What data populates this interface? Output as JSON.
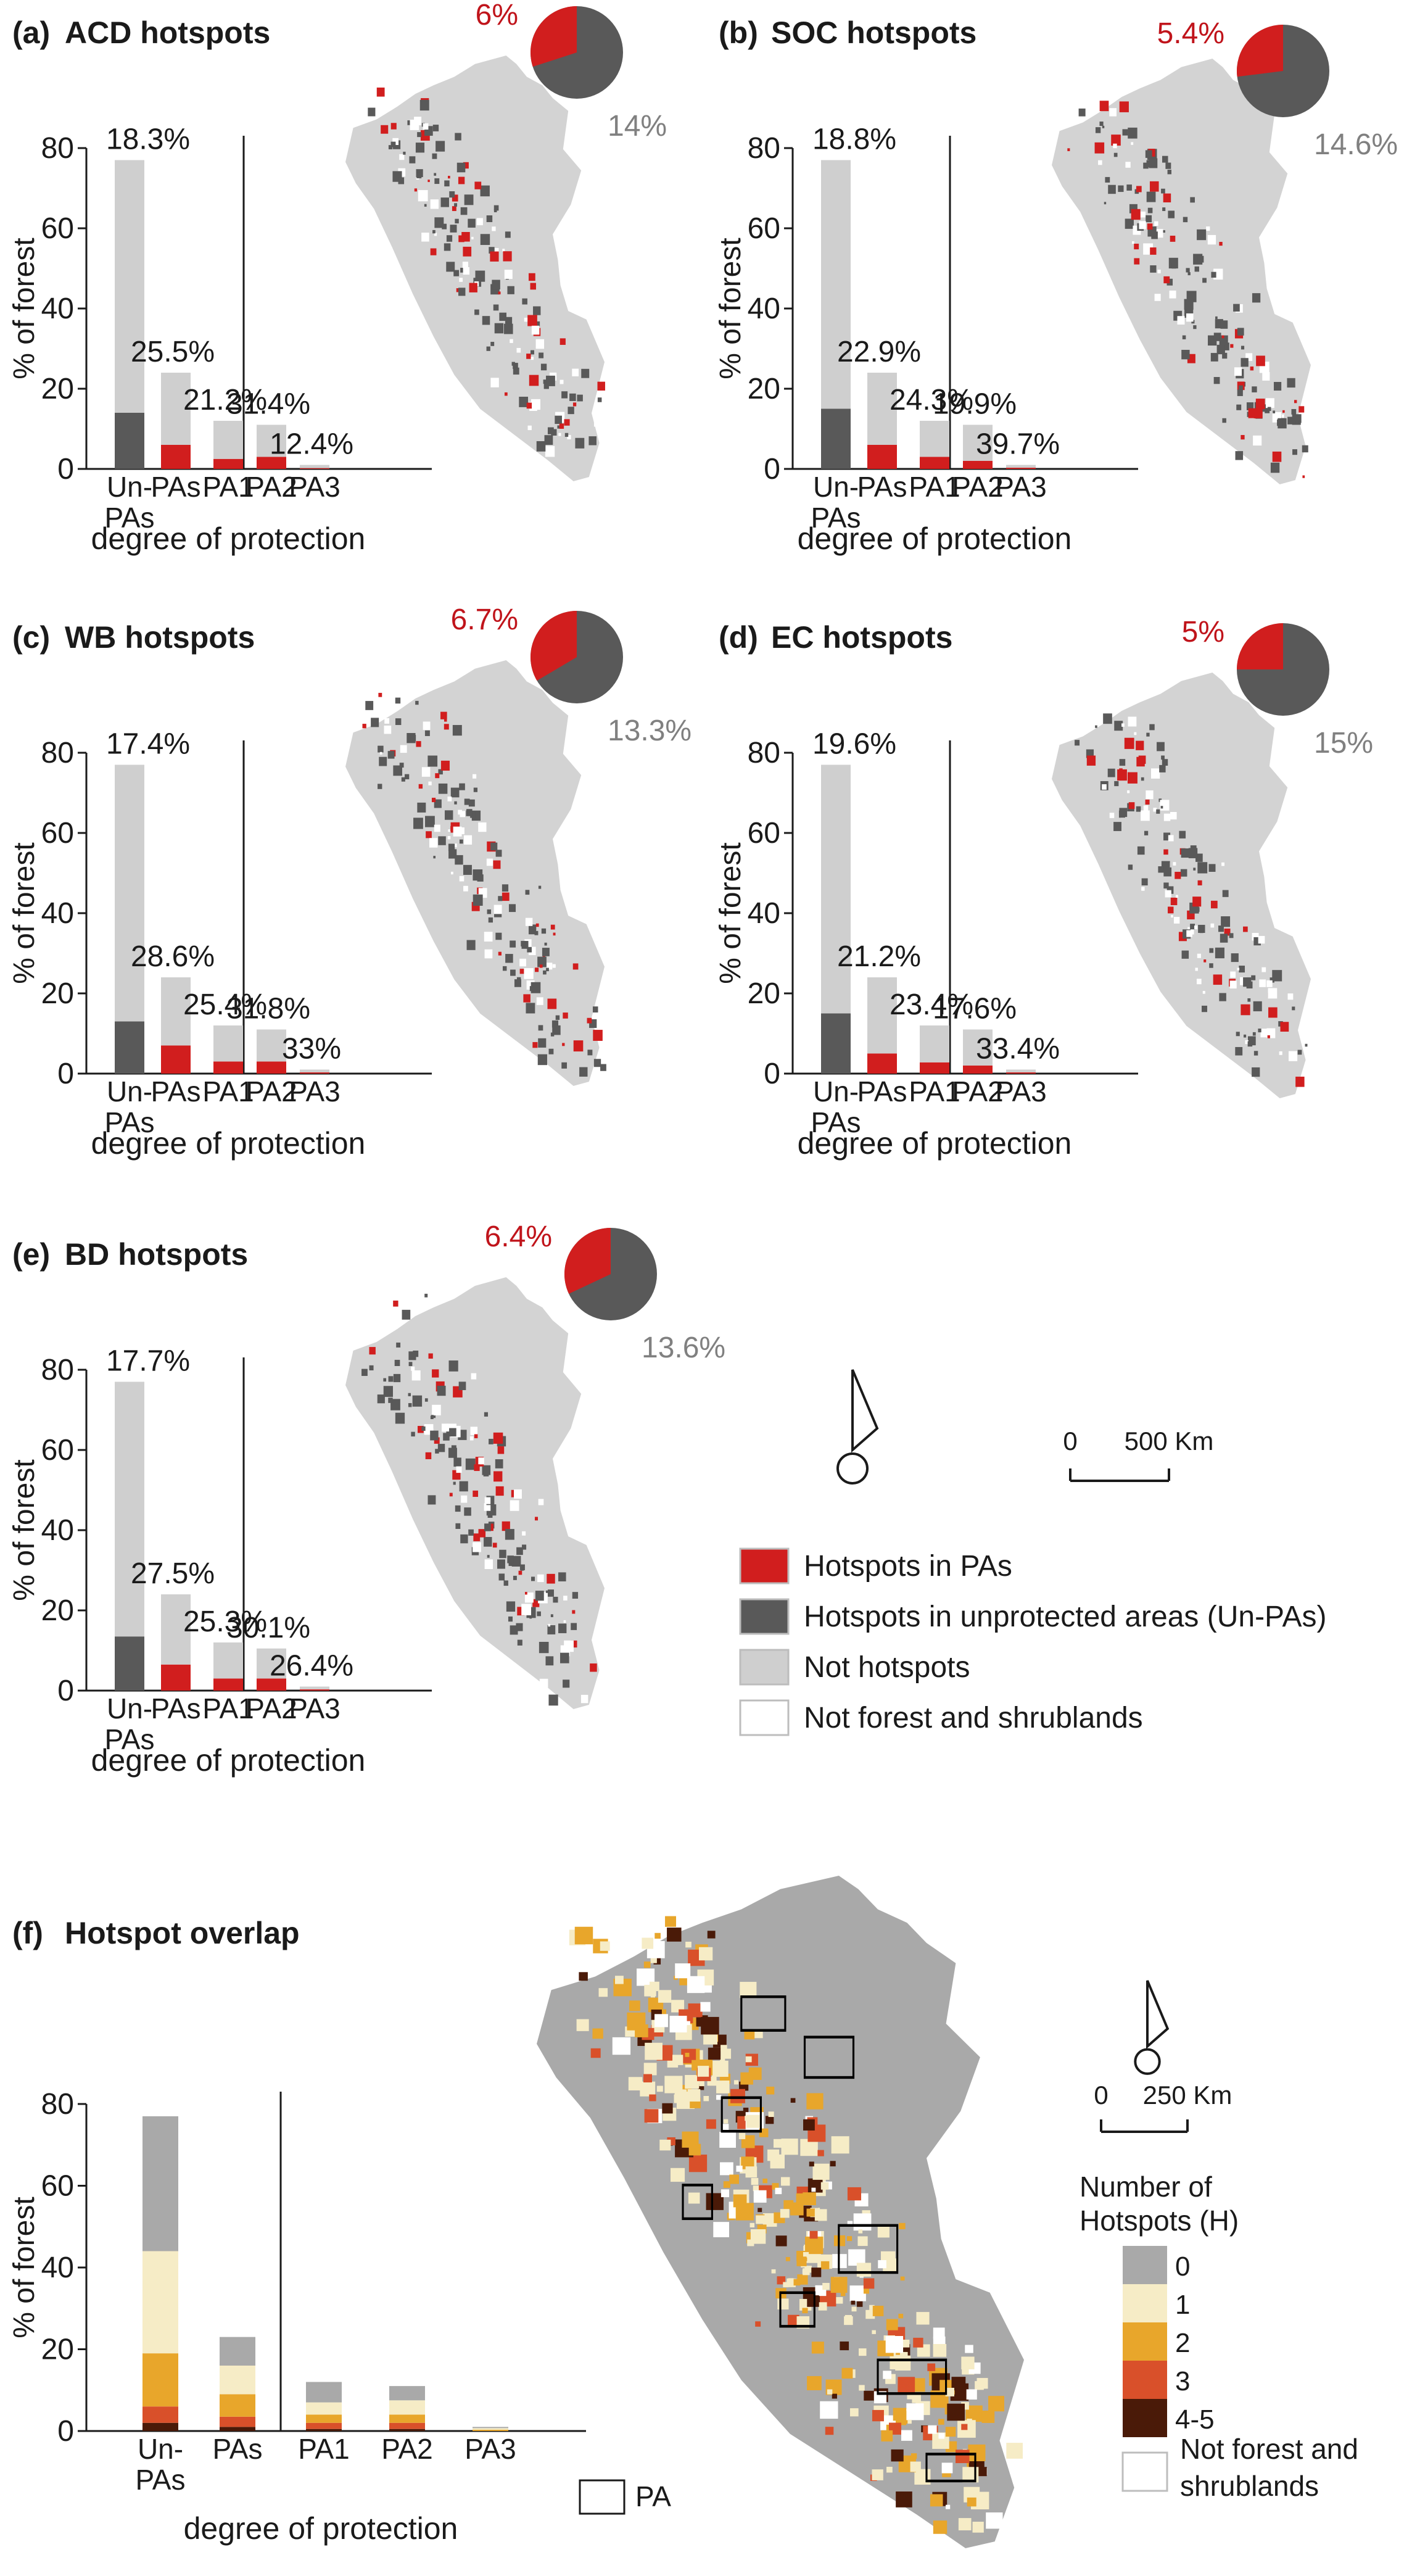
{
  "colors": {
    "red": "#d11e1e",
    "dark_grey": "#595959",
    "light_grey": "#cfcfcf",
    "map_grey": "#d3d3d3",
    "pct_red": "#c0141b",
    "pct_grey": "#808080",
    "h0": "#a9a9a9",
    "h1": "#f6ecc6",
    "h2": "#e8a62b",
    "h3": "#d9502a",
    "h45": "#4a1a08"
  },
  "common": {
    "ylabel": "% of forest",
    "xlabel": "degree of protection",
    "yticks": [
      "0",
      "20",
      "40",
      "60",
      "80"
    ],
    "ylim": [
      0,
      80
    ],
    "categories": [
      "Un-PAs",
      "PAs",
      "PA1",
      "PA2",
      "PA3"
    ]
  },
  "chart_data": [
    {
      "type": "bar",
      "panel": "(a)",
      "title": "ACD hotspots",
      "categories": [
        "Un-PAs",
        "PAs",
        "PA1",
        "PA2",
        "PA3"
      ],
      "series": [
        {
          "name": "Hotspots",
          "values": [
            14,
            6,
            2.5,
            3,
            0.2
          ]
        },
        {
          "name": "Not hotspots",
          "values": [
            63,
            18,
            9.5,
            8,
            0.8
          ]
        }
      ],
      "bar_labels": [
        "18.3%",
        "25.5%",
        "21.2%",
        "31.4%",
        "12.4%"
      ],
      "pie": {
        "protected_label": "6%",
        "unprotected_label": "14%",
        "protected_share": 0.3
      }
    },
    {
      "type": "bar",
      "panel": "(b)",
      "title": "SOC hotspots",
      "categories": [
        "Un-PAs",
        "PAs",
        "PA1",
        "PA2",
        "PA3"
      ],
      "series": [
        {
          "name": "Hotspots",
          "values": [
            15,
            6,
            3,
            2,
            0.3
          ]
        },
        {
          "name": "Not hotspots",
          "values": [
            62,
            18,
            9,
            9,
            0.7
          ]
        }
      ],
      "bar_labels": [
        "18.8%",
        "22.9%",
        "24.3%",
        "19.9%",
        "39.7%"
      ],
      "pie": {
        "protected_label": "5.4%",
        "unprotected_label": "14.6%",
        "protected_share": 0.27
      }
    },
    {
      "type": "bar",
      "panel": "(c)",
      "title": "WB hotspots",
      "categories": [
        "Un-PAs",
        "PAs",
        "PA1",
        "PA2",
        "PA3"
      ],
      "series": [
        {
          "name": "Hotspots",
          "values": [
            13,
            7,
            3,
            3,
            0.3
          ]
        },
        {
          "name": "Not hotspots",
          "values": [
            64,
            17,
            9,
            8,
            0.7
          ]
        }
      ],
      "bar_labels": [
        "17.4%",
        "28.6%",
        "25.4%",
        "31.8%",
        "33%"
      ],
      "pie": {
        "protected_label": "6.7%",
        "unprotected_label": "13.3%",
        "protected_share": 0.335
      }
    },
    {
      "type": "bar",
      "panel": "(d)",
      "title": "EC hotspots",
      "categories": [
        "Un-PAs",
        "PAs",
        "PA1",
        "PA2",
        "PA3"
      ],
      "series": [
        {
          "name": "Hotspots",
          "values": [
            15,
            5,
            2.8,
            2,
            0.3
          ]
        },
        {
          "name": "Not hotspots",
          "values": [
            62,
            19,
            9.2,
            9,
            0.7
          ]
        }
      ],
      "bar_labels": [
        "19.6%",
        "21.2%",
        "23.4%",
        "17.6%",
        "33.4%"
      ],
      "pie": {
        "protected_label": "5%",
        "unprotected_label": "15%",
        "protected_share": 0.25
      }
    },
    {
      "type": "bar",
      "panel": "(e)",
      "title": "BD hotspots",
      "categories": [
        "Un-PAs",
        "PAs",
        "PA1",
        "PA2",
        "PA3"
      ],
      "series": [
        {
          "name": "Hotspots",
          "values": [
            13.5,
            6.5,
            3,
            3,
            0.3
          ]
        },
        {
          "name": "Not hotspots",
          "values": [
            63.5,
            17.5,
            9,
            7.5,
            0.7
          ]
        }
      ],
      "bar_labels": [
        "17.7%",
        "27.5%",
        "25.3%",
        "30.1%",
        "26.4%"
      ],
      "pie": {
        "protected_label": "6.4%",
        "unprotected_label": "13.6%",
        "protected_share": 0.32
      }
    },
    {
      "type": "bar",
      "panel": "(f)",
      "title": "Hotspot overlap",
      "categories": [
        "Un-PAs",
        "PAs",
        "PA1",
        "PA2",
        "PA3"
      ],
      "series": [
        {
          "name": "4-5",
          "values": [
            2,
            1,
            0.5,
            0.5,
            0
          ]
        },
        {
          "name": "3",
          "values": [
            4,
            2.5,
            1.5,
            1.5,
            0
          ]
        },
        {
          "name": "2",
          "values": [
            13,
            5.5,
            2,
            2,
            0.3
          ]
        },
        {
          "name": "1",
          "values": [
            25,
            7,
            3,
            3.5,
            0.4
          ]
        },
        {
          "name": "0",
          "values": [
            33,
            7,
            5,
            3.5,
            0.3
          ]
        }
      ]
    }
  ],
  "legend": {
    "hotspots_pa": "Hotspots in PAs",
    "hotspots_unpa": "Hotspots in unprotected areas (Un-PAs)",
    "not_hotspots": "Not hotspots",
    "not_forest": "Not forest and shrublands"
  },
  "scalebar_top": {
    "zero": "0",
    "end": "500 Km"
  },
  "scalebar_bottom": {
    "zero": "0",
    "end": "250 Km"
  },
  "overlap_legend": {
    "title_line1": "Number of",
    "title_line2": "Hotspots (H)",
    "classes": [
      "0",
      "1",
      "2",
      "3",
      "4-5"
    ],
    "not_forest_line1": "Not forest and",
    "not_forest_line2": "shrublands",
    "pa_label": "PA"
  }
}
